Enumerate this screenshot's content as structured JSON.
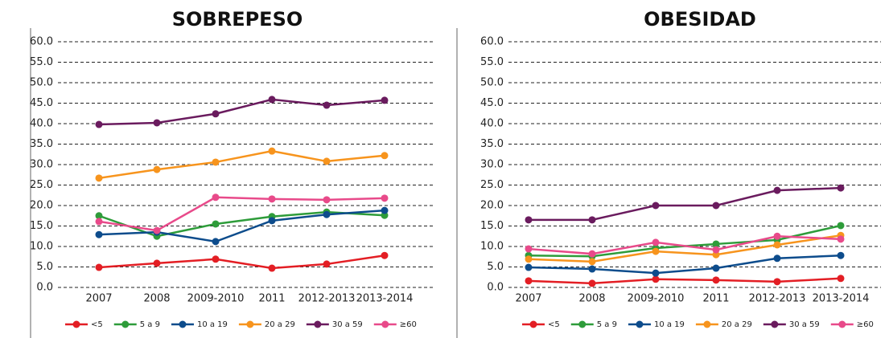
{
  "chart_data": [
    {
      "type": "line",
      "title": "SOBREPESO",
      "categories": [
        "2007",
        "2008",
        "2009-2010",
        "2011",
        "2012-2013",
        "2013-2014"
      ],
      "ylim": [
        0,
        60
      ],
      "yticks": [
        {
          "value": 0,
          "label": "0.0"
        },
        {
          "value": 5,
          "label": "5.0"
        },
        {
          "value": 10,
          "label": "10.0"
        },
        {
          "value": 15,
          "label": "15.0"
        },
        {
          "value": 20,
          "label": "20.0"
        },
        {
          "value": 25,
          "label": "25.0"
        },
        {
          "value": 30,
          "label": "30.0"
        },
        {
          "value": 35,
          "label": "35.0"
        },
        {
          "value": 40,
          "label": "40.0"
        },
        {
          "value": 45,
          "label": "45.0"
        },
        {
          "value": 50,
          "label": "50.0"
        },
        {
          "value": 55,
          "label": "55.0"
        },
        {
          "value": 60,
          "label": "60.0"
        }
      ],
      "grid": true,
      "series": [
        {
          "name": "<5",
          "color": "#e31e24",
          "values": [
            4.9,
            5.9,
            6.9,
            4.7,
            5.7,
            7.8
          ]
        },
        {
          "name": "5 a 9",
          "color": "#2e9c3a",
          "values": [
            17.5,
            12.5,
            15.5,
            17.3,
            18.4,
            17.6
          ]
        },
        {
          "name": "10 a 19",
          "color": "#0d4c8c",
          "values": [
            12.9,
            13.5,
            11.2,
            16.3,
            17.8,
            18.8
          ]
        },
        {
          "name": "20 a 29",
          "color": "#f7941d",
          "values": [
            26.7,
            28.8,
            30.6,
            33.3,
            30.8,
            32.2
          ]
        },
        {
          "name": "30 a 59",
          "color": "#6a1b5e",
          "values": [
            39.8,
            40.2,
            42.4,
            45.9,
            44.5,
            45.7
          ]
        },
        {
          "name": "≥60",
          "color": "#e84a8a",
          "values": [
            16.1,
            13.9,
            22.0,
            21.6,
            21.4,
            21.8
          ]
        }
      ]
    },
    {
      "type": "line",
      "title": "OBESIDAD",
      "categories": [
        "2007",
        "2008",
        "2009-2010",
        "2011",
        "2012-2013",
        "2013-2014"
      ],
      "ylim": [
        0,
        60
      ],
      "yticks": [
        {
          "value": 0,
          "label": "0.0"
        },
        {
          "value": 5,
          "label": "5.0"
        },
        {
          "value": 10,
          "label": "10.0"
        },
        {
          "value": 15,
          "label": "15.0"
        },
        {
          "value": 20,
          "label": "20.0"
        },
        {
          "value": 25,
          "label": "25.0"
        },
        {
          "value": 30,
          "label": "30.0"
        },
        {
          "value": 35,
          "label": "35.0"
        },
        {
          "value": 40,
          "label": "40.0"
        },
        {
          "value": 45,
          "label": "45.0"
        },
        {
          "value": 50,
          "label": "50.0"
        },
        {
          "value": 55,
          "label": "55.0"
        },
        {
          "value": 60,
          "label": "60.0"
        }
      ],
      "grid": true,
      "series": [
        {
          "name": "<5",
          "color": "#e31e24",
          "values": [
            1.6,
            1.0,
            2.0,
            1.8,
            1.4,
            2.2
          ]
        },
        {
          "name": "5 a 9",
          "color": "#2e9c3a",
          "values": [
            7.8,
            7.6,
            9.6,
            10.6,
            11.6,
            15.1
          ]
        },
        {
          "name": "10 a 19",
          "color": "#0d4c8c",
          "values": [
            4.9,
            4.5,
            3.5,
            4.7,
            7.1,
            7.8
          ]
        },
        {
          "name": "20 a 29",
          "color": "#f7941d",
          "values": [
            6.9,
            6.3,
            8.8,
            8.0,
            10.4,
            12.7
          ]
        },
        {
          "name": "30 a 59",
          "color": "#6a1b5e",
          "values": [
            16.5,
            16.5,
            20.0,
            20.0,
            23.7,
            24.3
          ]
        },
        {
          "name": "≥60",
          "color": "#e84a8a",
          "values": [
            9.4,
            8.2,
            11.0,
            9.2,
            12.5,
            11.8
          ]
        }
      ]
    }
  ]
}
